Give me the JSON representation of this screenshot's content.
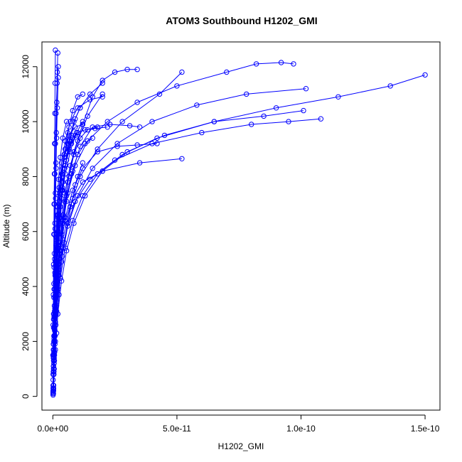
{
  "chart_data": {
    "type": "line",
    "title": "ATOM3 Southbound H1202_GMI",
    "xlabel": "H1202_GMI",
    "ylabel": "Altitude (m)",
    "xlim": [
      -4.4e-12,
      1.56e-10
    ],
    "ylim": [
      -500,
      12900
    ],
    "xticks": [
      0,
      5e-11,
      1e-10,
      1.5e-10
    ],
    "xtick_labels": [
      "0.0e+00",
      "5.0e-11",
      "1.0e-10",
      "1.5e-10"
    ],
    "yticks": [
      0,
      2000,
      4000,
      6000,
      8000,
      10000,
      12000
    ],
    "ytick_labels": [
      "0",
      "2000",
      "4000",
      "6000",
      "8000",
      "10000",
      "12000"
    ],
    "grid": false,
    "legend": "none",
    "color": "#0000ff",
    "marker": "open-circle",
    "series": [
      {
        "x": [
          2e-13,
          4e-13,
          6e-13,
          8e-13,
          1e-12,
          1.4e-12,
          2e-12,
          3e-12,
          5e-12,
          8e-12,
          1.2e-11,
          2e-11,
          3.5e-11,
          5.2e-11
        ],
        "y": [
          100,
          800,
          1600,
          2400,
          3200,
          4000,
          4800,
          5600,
          6400,
          7200,
          7800,
          8200,
          8500,
          8650
        ]
      },
      {
        "x": [
          3e-13,
          5e-13,
          9e-13,
          1.5e-12,
          2.5e-12,
          4e-12,
          6e-12,
          9e-12,
          1.5e-11,
          2.5e-11,
          4e-11,
          6e-11,
          8e-11,
          9.5e-11,
          1.08e-10
        ],
        "y": [
          300,
          1200,
          2200,
          3300,
          4400,
          5400,
          6300,
          7100,
          7900,
          8600,
          9200,
          9600,
          9900,
          10000,
          10100
        ]
      },
      {
        "x": [
          2e-13,
          5e-13,
          1e-12,
          2e-12,
          3.5e-12,
          5.5e-12,
          8.5e-12,
          1.3e-11,
          2e-11,
          3e-11,
          4.5e-11,
          6.5e-11,
          8.5e-11,
          1.01e-10
        ],
        "y": [
          200,
          1000,
          2000,
          3000,
          4200,
          5300,
          6300,
          7300,
          8200,
          8900,
          9500,
          10000,
          10200,
          10400
        ]
      },
      {
        "x": [
          1e-13,
          4e-13,
          8e-13,
          1.5e-12,
          3e-12,
          5e-12,
          8e-12,
          1.2e-11,
          1.8e-11,
          2.8e-11,
          4.2e-11,
          6.5e-11,
          9e-11,
          1.15e-10,
          1.36e-10,
          1.5e-10
        ],
        "y": [
          150,
          900,
          1900,
          3100,
          4300,
          5400,
          6400,
          7300,
          8100,
          8800,
          9400,
          10000,
          10500,
          10900,
          11300,
          11700
        ]
      },
      {
        "x": [
          2e-13,
          6e-13,
          1.2e-12,
          2.2e-12,
          3.8e-12,
          6e-12,
          1e-11,
          1.6e-11,
          2.6e-11,
          4e-11,
          5.8e-11,
          7.8e-11,
          1.02e-10
        ],
        "y": [
          250,
          1300,
          2600,
          3900,
          5100,
          6200,
          7300,
          8300,
          9200,
          10000,
          10600,
          11000,
          11200
        ]
      },
      {
        "x": [
          1e-13,
          3e-13,
          6e-13,
          1e-12,
          1.6e-12,
          2.6e-12,
          4e-12,
          6e-12,
          9e-12,
          1.4e-11,
          2.2e-11,
          3.4e-11,
          5e-11,
          7e-11,
          8.2e-11,
          9.2e-11,
          9.7e-11
        ],
        "y": [
          100,
          1000,
          2000,
          3100,
          4200,
          5300,
          6400,
          7400,
          8400,
          9300,
          10000,
          10700,
          11300,
          11800,
          12100,
          12150,
          12100
        ]
      },
      {
        "x": [
          3e-13,
          7e-13,
          1.3e-12,
          2.3e-12,
          4e-12,
          7e-12,
          1.1e-11,
          1.8e-11,
          2.8e-11,
          4.3e-11,
          5.2e-11
        ],
        "y": [
          400,
          1600,
          3000,
          4400,
          5700,
          6900,
          8000,
          9000,
          10000,
          11000,
          11800
        ]
      },
      {
        "x": [
          2e-13,
          6e-13,
          1.2e-12,
          2.2e-12,
          3.6e-12,
          5.5e-12,
          8e-12,
          1.1e-11,
          1.6e-11,
          2.3e-11,
          3.1e-11,
          3.5e-11
        ],
        "y": [
          200,
          1500,
          3000,
          4500,
          5900,
          7100,
          8200,
          9100,
          9800,
          9900,
          9850,
          9800
        ]
      },
      {
        "x": [
          1e-13,
          4e-13,
          9e-13,
          1.7e-12,
          3e-12,
          5e-12,
          8e-12,
          1.2e-11,
          1.8e-11,
          2.6e-11,
          3.4e-11,
          4.2e-11
        ],
        "y": [
          150,
          1300,
          2700,
          4000,
          5300,
          6500,
          7500,
          8300,
          8900,
          9100,
          9150,
          9200
        ]
      },
      {
        "x": [
          2e-13,
          5e-13,
          1e-12,
          1.8e-12,
          2.8e-12,
          4.2e-12,
          6e-12,
          8.5e-12,
          1.2e-11,
          1.6e-11,
          2e-11,
          2.5e-11,
          3e-11,
          3.4e-11
        ],
        "y": [
          300,
          1400,
          2700,
          4000,
          5300,
          6600,
          7800,
          8900,
          9900,
          10900,
          11500,
          11800,
          11900,
          11900
        ]
      },
      {
        "x": [
          1e-13,
          3e-13,
          7e-13,
          1.2e-12,
          2e-12,
          3.2e-12,
          4.8e-12,
          7e-12,
          1e-11,
          1.4e-11,
          2e-11
        ],
        "y": [
          200,
          1300,
          2600,
          3900,
          5100,
          6300,
          7400,
          8400,
          9300,
          10200,
          11000
        ]
      },
      {
        "x": [
          1e-13,
          3e-13,
          6e-13,
          1e-12,
          1.5e-12,
          2.2e-12,
          3e-12,
          4e-12,
          5e-12,
          6.5e-12,
          8.5e-12,
          1.1e-11,
          1.5e-11,
          2e-11
        ],
        "y": [
          100,
          1100,
          2200,
          3300,
          4400,
          5500,
          6500,
          7500,
          8400,
          9300,
          10000,
          10500,
          11000,
          11400
        ]
      },
      {
        "x": [
          2e-13,
          4e-13,
          7e-13,
          1.1e-12,
          1.6e-12,
          2.2e-12,
          3e-12,
          4e-12,
          5.5e-12,
          7.5e-12,
          1e-11,
          1.3e-11,
          1.7e-11,
          2.2e-11
        ],
        "y": [
          200,
          1200,
          2400,
          3600,
          4800,
          5900,
          6900,
          7800,
          8600,
          9200,
          9600,
          9700,
          9750,
          9800
        ]
      },
      {
        "x": [
          1e-13,
          2e-13,
          4e-13,
          7e-13,
          1.1e-12,
          1.7e-12,
          2.5e-12,
          3.5e-12,
          5e-12,
          7e-12,
          9e-12,
          1.2e-11
        ],
        "y": [
          150,
          900,
          2000,
          3100,
          4200,
          5300,
          6300,
          7200,
          8100,
          8900,
          9500,
          10000
        ]
      },
      {
        "x": [
          3e-13,
          6e-13,
          1e-12,
          1.6e-12,
          2.4e-12,
          3.4e-12,
          4.8e-12,
          6.5e-12,
          8.5e-12,
          1.1e-11,
          1.4e-11,
          1.8e-11
        ],
        "y": [
          400,
          1500,
          2700,
          3900,
          5000,
          6100,
          7100,
          8000,
          8800,
          9400,
          9700,
          9800
        ]
      },
      {
        "x": [
          1e-13,
          3e-13,
          5e-13,
          8e-13,
          1.2e-12,
          1.8e-12,
          2.6e-12,
          3.6e-12,
          5e-12,
          6.8e-12,
          9e-12,
          1.1e-11
        ],
        "y": [
          100,
          1000,
          2100,
          3200,
          4300,
          5400,
          6500,
          7500,
          8400,
          9300,
          10100,
          10500
        ]
      },
      {
        "x": [
          2e-13,
          4e-13,
          7e-13,
          1e-12,
          1.4e-12,
          2e-12,
          2.8e-12,
          3.8e-12,
          5e-12,
          6.5e-12,
          8e-12,
          1e-11,
          1.2e-11
        ],
        "y": [
          250,
          1300,
          2500,
          3700,
          4900,
          6000,
          7100,
          8100,
          9000,
          9800,
          10400,
          10900,
          11000
        ]
      },
      {
        "x": [
          1e-13,
          2e-13,
          3e-13,
          5e-13,
          7e-13,
          1e-12,
          1.4e-12,
          2e-12,
          3e-12,
          4.5e-12,
          6.5e-12,
          9e-12,
          1.2e-11
        ],
        "y": [
          50,
          900,
          1900,
          2900,
          3900,
          4900,
          5900,
          6900,
          7900,
          8800,
          9500,
          9800,
          9900
        ]
      },
      {
        "x": [
          1e-13,
          2e-13,
          4e-13,
          6e-13,
          9e-13,
          1.3e-12,
          1.8e-12,
          2.5e-12,
          3.5e-12,
          5e-12,
          7e-12,
          1e-11,
          1.5e-11,
          2e-11
        ],
        "y": [
          100,
          1100,
          2200,
          3300,
          4400,
          5500,
          6600,
          7600,
          8500,
          9300,
          10000,
          10500,
          10800,
          10900
        ]
      },
      {
        "x": [
          5e-13,
          1e-12,
          1.5e-12,
          2e-12,
          2.5e-12,
          3e-12,
          3.5e-12,
          4.5e-12,
          6e-12,
          7.5e-12,
          9e-12,
          1e-11,
          1.2e-11
        ],
        "y": [
          1000,
          1700,
          2300,
          3000,
          3700,
          4300,
          4900,
          5600,
          6300,
          7000,
          7700,
          8000,
          8500
        ]
      },
      {
        "x": [
          2e-13,
          4e-13,
          6e-13,
          9e-13,
          1.2e-12,
          1.6e-12,
          2.1e-12,
          2.8e-12,
          3.6e-12,
          4.6e-12,
          6e-12,
          7.5e-12
        ],
        "y": [
          300,
          1400,
          2500,
          3600,
          4700,
          5700,
          6600,
          7400,
          8100,
          8700,
          9200,
          9500
        ]
      },
      {
        "x": [
          1e-13,
          2e-13,
          3e-13,
          4e-13,
          5e-13,
          6e-13,
          7e-13,
          8e-13,
          1e-12,
          1.3e-12,
          1.7e-12,
          2.2e-12
        ],
        "y": [
          400,
          1400,
          2500,
          3600,
          4700,
          5900,
          7000,
          8100,
          9200,
          10300,
          11400,
          12000
        ]
      },
      {
        "x": [
          1e-13,
          2e-13,
          3e-13,
          5e-13,
          7e-13,
          9e-13,
          1.1e-12,
          1.3e-12,
          1.5e-12,
          1.8e-12,
          2.2e-12
        ],
        "y": [
          600,
          1700,
          2800,
          3900,
          5000,
          6100,
          7200,
          8300,
          9400,
          10500,
          11600
        ]
      },
      {
        "x": [
          1e-13,
          2e-13,
          3e-13,
          4e-13,
          6e-13,
          8e-13,
          1e-12,
          1.2e-12,
          1.4e-12,
          1.6e-12,
          1.8e-12,
          2e-12
        ],
        "y": [
          800,
          1900,
          3000,
          4100,
          5200,
          6300,
          7400,
          8500,
          9600,
          10700,
          11800,
          12500
        ]
      },
      {
        "x": [
          0,
          1e-13,
          2e-13,
          3e-13,
          4e-13,
          5e-13,
          6e-13,
          7e-13,
          8e-13,
          9e-13,
          1e-12
        ],
        "y": [
          1500,
          2600,
          3700,
          4800,
          5900,
          7000,
          8100,
          9200,
          10300,
          11400,
          12600
        ]
      },
      {
        "x": [
          1e-13,
          3e-13,
          6e-13,
          1e-12,
          1.5e-12,
          2.2e-12,
          3e-12,
          4e-12,
          5e-12,
          6e-12,
          7e-12
        ],
        "y": [
          200,
          1500,
          2800,
          4100,
          5300,
          6500,
          7500,
          8300,
          9000,
          9600,
          10000
        ]
      },
      {
        "x": [
          2e-13,
          5e-13,
          9e-13,
          1.4e-12,
          2e-12,
          2.8e-12,
          3.8e-12,
          5e-12,
          6.5e-12,
          8e-12
        ],
        "y": [
          400,
          1700,
          3000,
          4300,
          5500,
          6600,
          7600,
          8400,
          9000,
          9400
        ]
      },
      {
        "x": [
          1e-13,
          4e-13,
          8e-13,
          1.3e-12,
          2e-12,
          2.8e-12,
          3.7e-12,
          4.8e-12,
          6e-12,
          7.5e-12,
          9.5e-12
        ],
        "y": [
          300,
          1600,
          2900,
          4200,
          5400,
          6500,
          7500,
          8300,
          8900,
          9300,
          9600
        ]
      },
      {
        "x": [
          1e-13,
          3e-13,
          5e-13,
          8e-13,
          1.2e-12,
          1.7e-12,
          2.3e-12,
          3e-12,
          4e-12,
          5.5e-12
        ],
        "y": [
          100,
          1500,
          3000,
          4500,
          5800,
          6900,
          7900,
          8700,
          9400,
          10000
        ]
      },
      {
        "x": [
          2e-13,
          5e-13,
          1e-12,
          1.7e-12,
          2.7e-12,
          4e-12,
          5.5e-12,
          7.5e-12,
          1e-11,
          1.3e-11,
          1.6e-11
        ],
        "y": [
          200,
          1400,
          2700,
          4000,
          5200,
          6300,
          7300,
          8100,
          8800,
          9200,
          9400
        ]
      }
    ]
  }
}
